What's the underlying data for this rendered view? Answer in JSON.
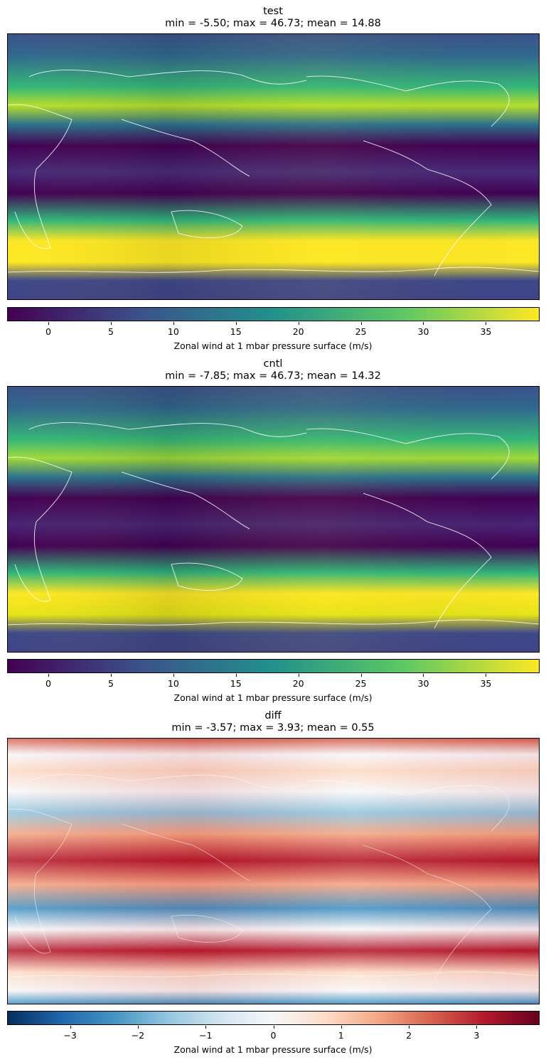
{
  "panels": [
    {
      "id": "test",
      "title": "test",
      "stats": "min = -5.50; max = 46.73; mean = 14.88",
      "colormap": "viridis",
      "colorbar": {
        "vmin": -3.3,
        "vmax": 39.3,
        "ticks": [
          0,
          5,
          10,
          15,
          20,
          25,
          30,
          35
        ],
        "tick_labels": [
          "0",
          "5",
          "10",
          "15",
          "20",
          "25",
          "30",
          "35"
        ],
        "label": "Zonal wind at 1 mbar pressure surface (m/s)"
      }
    },
    {
      "id": "cntl",
      "title": "cntl",
      "stats": "min = -7.85; max = 46.73; mean = 14.32",
      "colormap": "viridis",
      "colorbar": {
        "vmin": -3.3,
        "vmax": 39.3,
        "ticks": [
          0,
          5,
          10,
          15,
          20,
          25,
          30,
          35
        ],
        "tick_labels": [
          "0",
          "5",
          "10",
          "15",
          "20",
          "25",
          "30",
          "35"
        ],
        "label": "Zonal wind at 1 mbar pressure surface (m/s)"
      }
    },
    {
      "id": "diff",
      "title": "diff",
      "stats": "min = -3.57; max = 3.93; mean = 0.55",
      "colormap": "RdBu_r",
      "colorbar": {
        "vmin": -3.93,
        "vmax": 3.93,
        "ticks": [
          -3,
          -2,
          -1,
          0,
          1,
          2,
          3
        ],
        "tick_labels": [
          "−3",
          "−2",
          "−1",
          "0",
          "1",
          "2",
          "3"
        ],
        "label": "Zonal wind at 1 mbar pressure surface (m/s)"
      }
    }
  ],
  "colors": {
    "viridis": [
      "#440154",
      "#3b528b",
      "#21918c",
      "#5ec962",
      "#fde725"
    ],
    "RdBu_r": [
      "#053061",
      "#2166ac",
      "#4393c3",
      "#92c5de",
      "#d1e5f0",
      "#f7f7f7",
      "#fddbc7",
      "#f4a582",
      "#d6604d",
      "#b2182b",
      "#67001f"
    ],
    "coastline": "#ffffff"
  }
}
